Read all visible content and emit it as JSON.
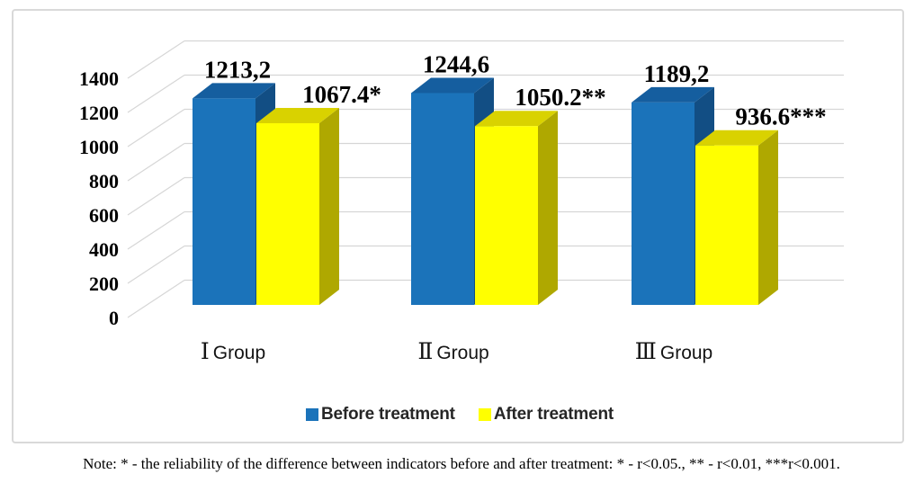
{
  "chart_data": {
    "type": "bar",
    "style": "3d-clustered-column",
    "title": "",
    "xlabel": "",
    "ylabel": "",
    "categories": [
      "Ⅰ Group",
      "Ⅱ Group",
      "Ⅲ Group"
    ],
    "series": [
      {
        "name": "Before treatment",
        "color": "#1b73ba",
        "color_top": "#155e9f",
        "color_side": "#124e84",
        "values": [
          1213.2,
          1244.6,
          1189.2
        ],
        "data_labels": [
          "1213,2",
          "1244,6",
          "1189,2"
        ]
      },
      {
        "name": "After treatment",
        "color": "#ffff00",
        "color_top": "#d9d200",
        "color_side": "#afa800",
        "values": [
          1067.4,
          1050.2,
          936.6
        ],
        "data_labels": [
          "1067.4*",
          "1050.2**",
          "936.6***"
        ]
      }
    ],
    "ylim": [
      0,
      1400
    ],
    "ytick_step": 200,
    "yticks": [
      1400,
      1200,
      1000,
      800,
      600,
      400,
      200,
      0
    ],
    "grid": true,
    "gridline_color": "#d6d6d6",
    "legend_position": "bottom"
  },
  "legend": {
    "items": [
      {
        "label": "Before treatment",
        "color": "#1b73ba"
      },
      {
        "label": "After treatment",
        "color": "#ffff00"
      }
    ]
  },
  "note": "Note: * - the reliability of the difference between indicators before and after treatment: * - r<0.05., ** - r<0.01, ***r<0.001."
}
